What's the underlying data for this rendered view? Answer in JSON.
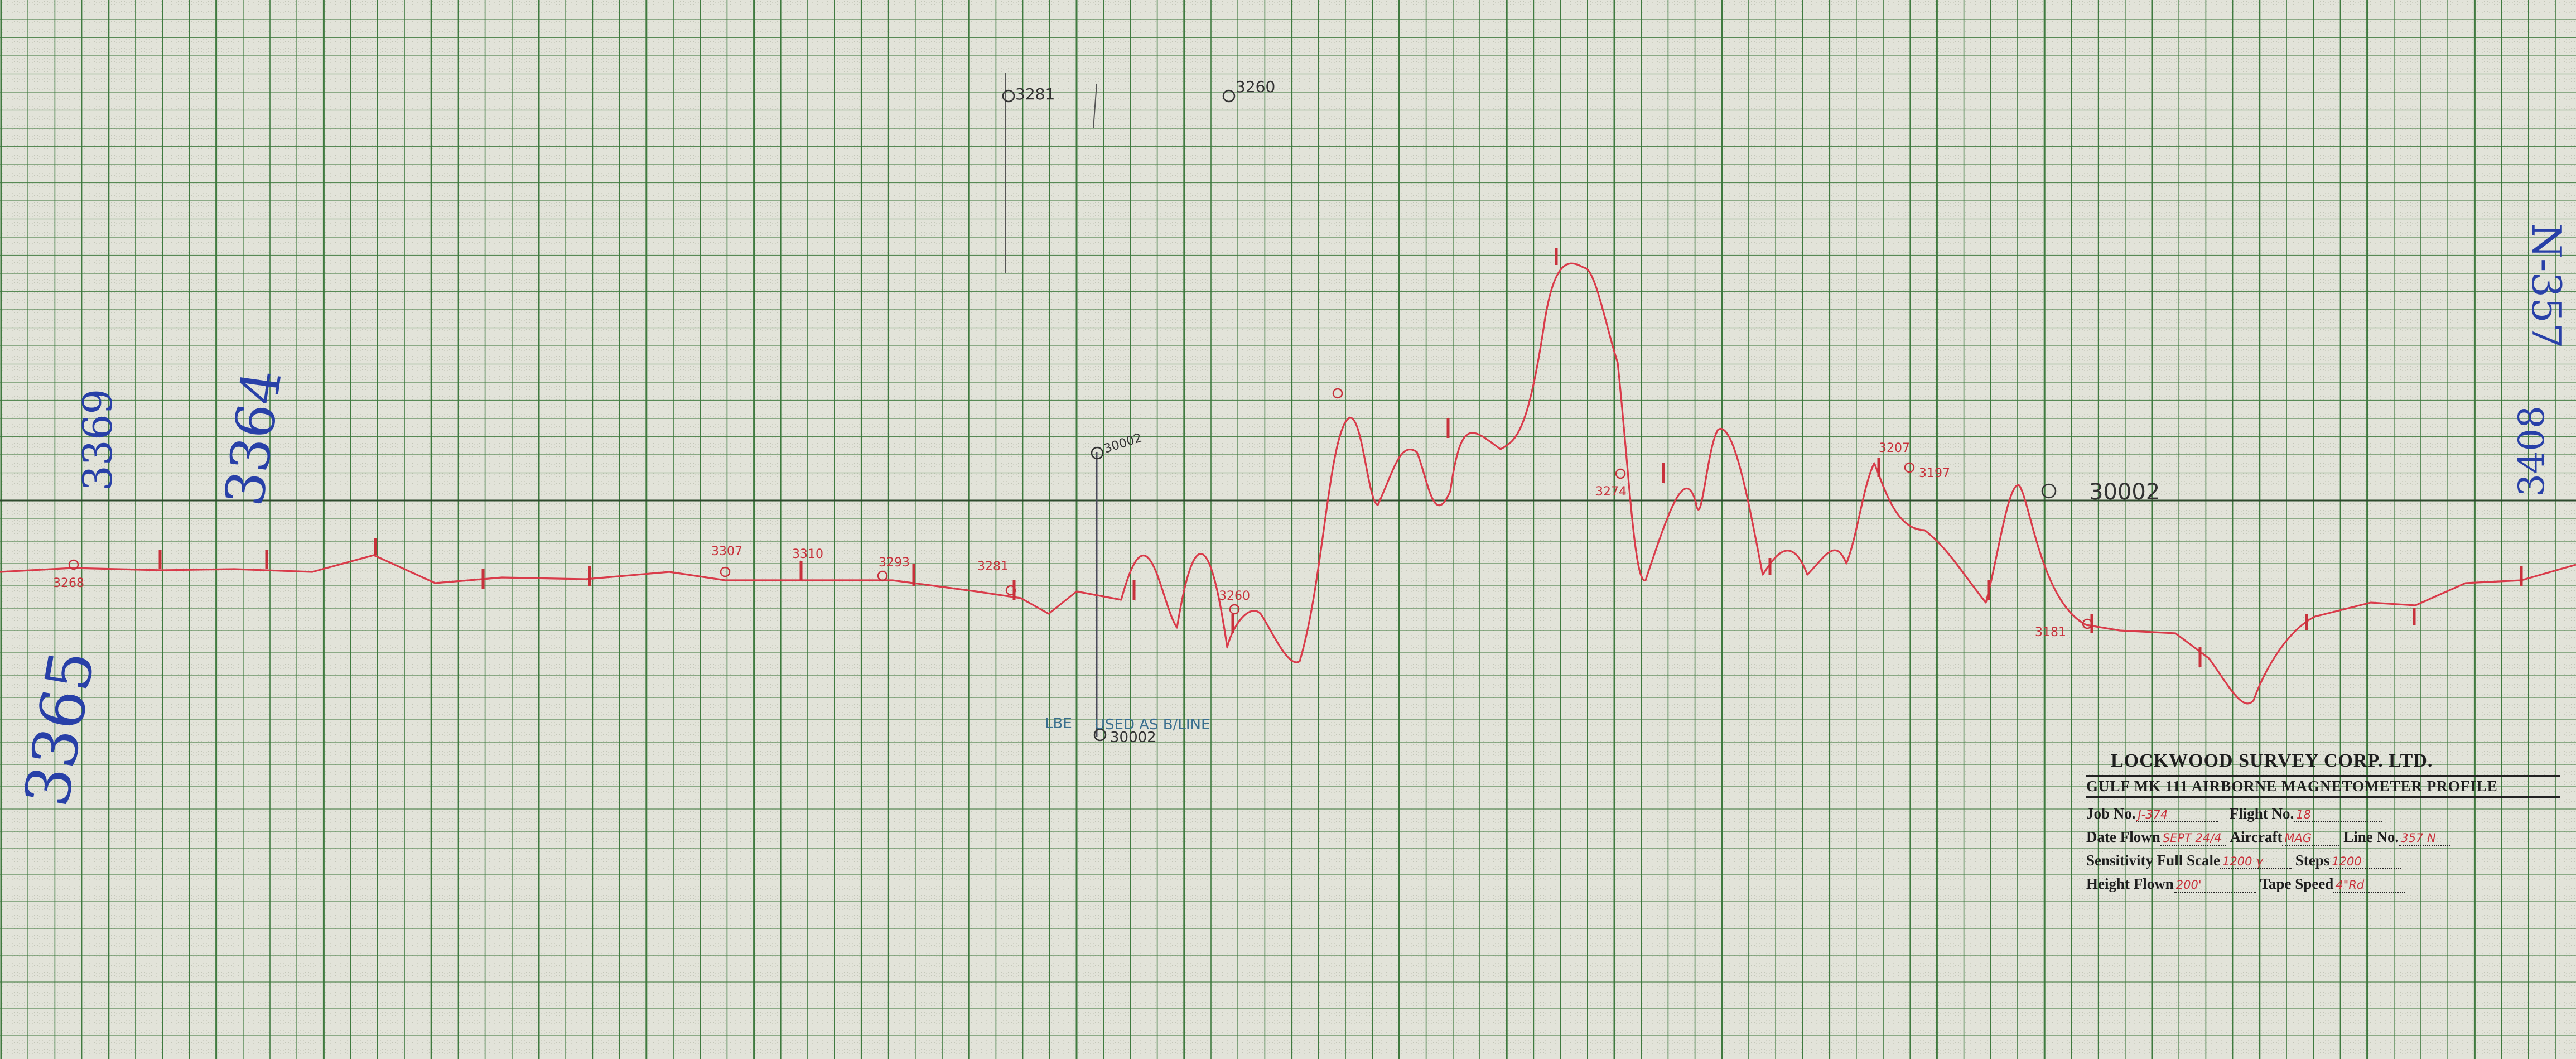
{
  "title_block": {
    "company": "LOCKWOOD SURVEY CORP. LTD.",
    "subtitle": "GULF MK 111 AIRBORNE MAGNETOMETER PROFILE",
    "fields": [
      {
        "label": "Job No.",
        "value": "J-374"
      },
      {
        "label": "Flight No.",
        "value": "18"
      },
      {
        "label": "Date Flown",
        "value": "SEPT 24/4"
      },
      {
        "label": "Aircraft",
        "value": "MAG"
      },
      {
        "label": "Line No.",
        "value": "357 N"
      },
      {
        "label": "Sensitivity Full Scale",
        "value": "1200 γ"
      },
      {
        "label": "Steps",
        "value": "1200"
      },
      {
        "label": "Height Flown",
        "value": "200'"
      },
      {
        "label": "Tape Speed",
        "value": "4\"Rd"
      }
    ]
  },
  "annotations": {
    "fid_left_top": "3369",
    "fid_left_mid": "3364",
    "fid_left_bottom": "3365",
    "fid_right": "3408",
    "line_right": "N-357",
    "datum_right": "30002",
    "datum_left": "30002",
    "datum_bottom": "30002",
    "used_baseline": "USED AS B/LINE",
    "lbe": "LBE",
    "top_fid_1": "3281",
    "top_fid_2": "3260"
  },
  "fiducials": [
    {
      "label": "3268"
    },
    {
      "label": "3307"
    },
    {
      "label": "3310"
    },
    {
      "label": "3293"
    },
    {
      "label": "3281"
    },
    {
      "label": "3260"
    },
    {
      "label": "3274"
    },
    {
      "label": "3207"
    },
    {
      "label": "3197"
    },
    {
      "label": "3181"
    }
  ],
  "colors": {
    "paper": "#dfe1d6",
    "grid": "#3f7a3f",
    "trace": "#d93b4a",
    "ink_blue": "#2840a8"
  }
}
